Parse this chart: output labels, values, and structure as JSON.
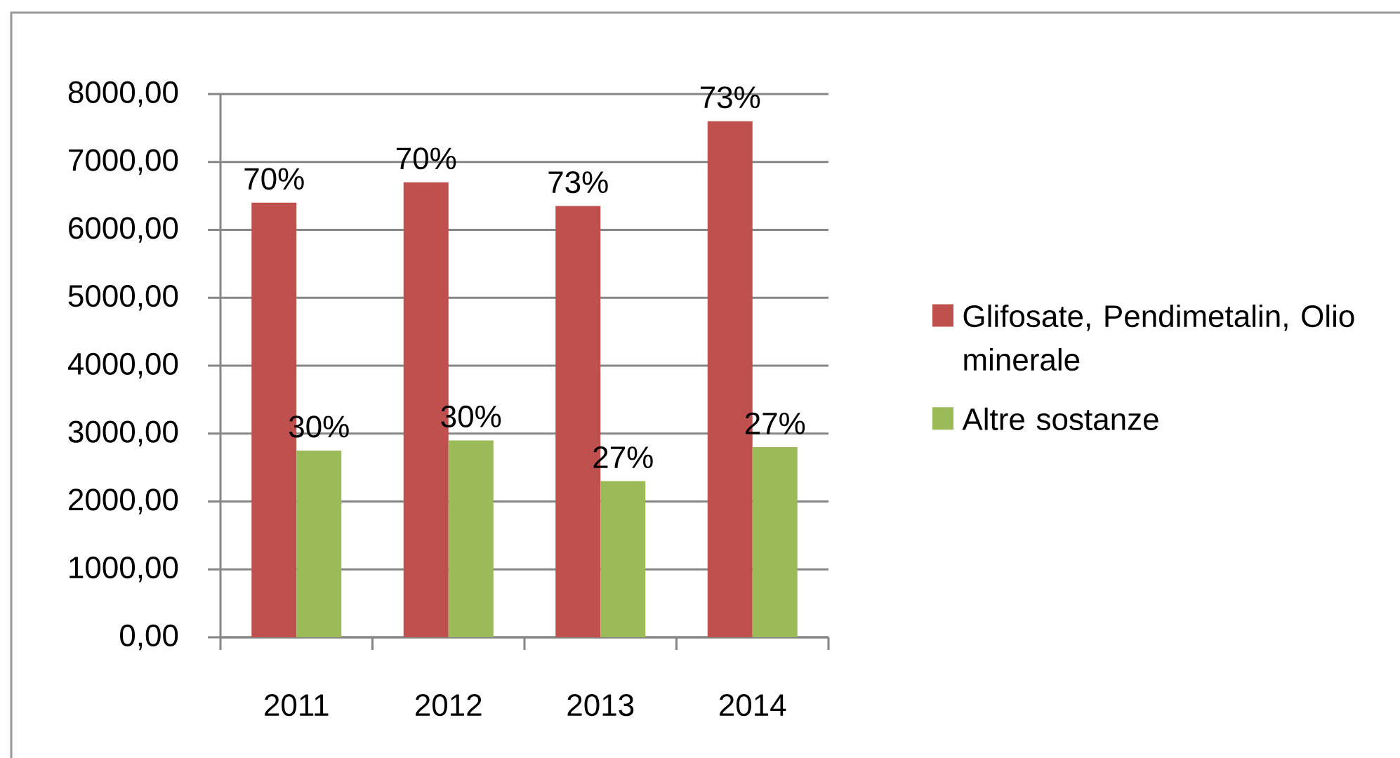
{
  "chart_data": {
    "type": "bar",
    "categories": [
      "2011",
      "2012",
      "2013",
      "2014"
    ],
    "series": [
      {
        "name": "Glifosate, Pendimetalin, Olio minerale",
        "color": "#c0504d",
        "values": [
          6400,
          6700,
          6350,
          7600
        ]
      },
      {
        "name": "Altre sostanze",
        "color": "#9bbb59",
        "values": [
          2750,
          2900,
          2300,
          2800
        ]
      }
    ],
    "annotations": [
      {
        "text": "70%",
        "x": "2011",
        "y": 6400
      },
      {
        "text": "70%",
        "x": "2012",
        "y": 6700
      },
      {
        "text": "73%",
        "x": "2013",
        "y": 6350
      },
      {
        "text": "73%",
        "x": "2014",
        "y": 7600
      },
      {
        "text": "30%",
        "x": "2011",
        "y": 2750
      },
      {
        "text": "30%",
        "x": "2012",
        "y": 2900
      },
      {
        "text": "27%",
        "x": "2013",
        "y": 2300
      },
      {
        "text": "27%",
        "x": "2014",
        "y": 2800
      }
    ],
    "ylim": [
      0,
      8000
    ],
    "yticks": [
      {
        "value": 0,
        "label": "0,00"
      },
      {
        "value": 1000,
        "label": "1000,00"
      },
      {
        "value": 2000,
        "label": "2000,00"
      },
      {
        "value": 3000,
        "label": "3000,00"
      },
      {
        "value": 4000,
        "label": "4000,00"
      },
      {
        "value": 5000,
        "label": "5000,00"
      },
      {
        "value": 6000,
        "label": "6000,00"
      },
      {
        "value": 7000,
        "label": "7000,00"
      },
      {
        "value": 8000,
        "label": "8000,00"
      }
    ],
    "grid": "y",
    "legend": "right"
  }
}
